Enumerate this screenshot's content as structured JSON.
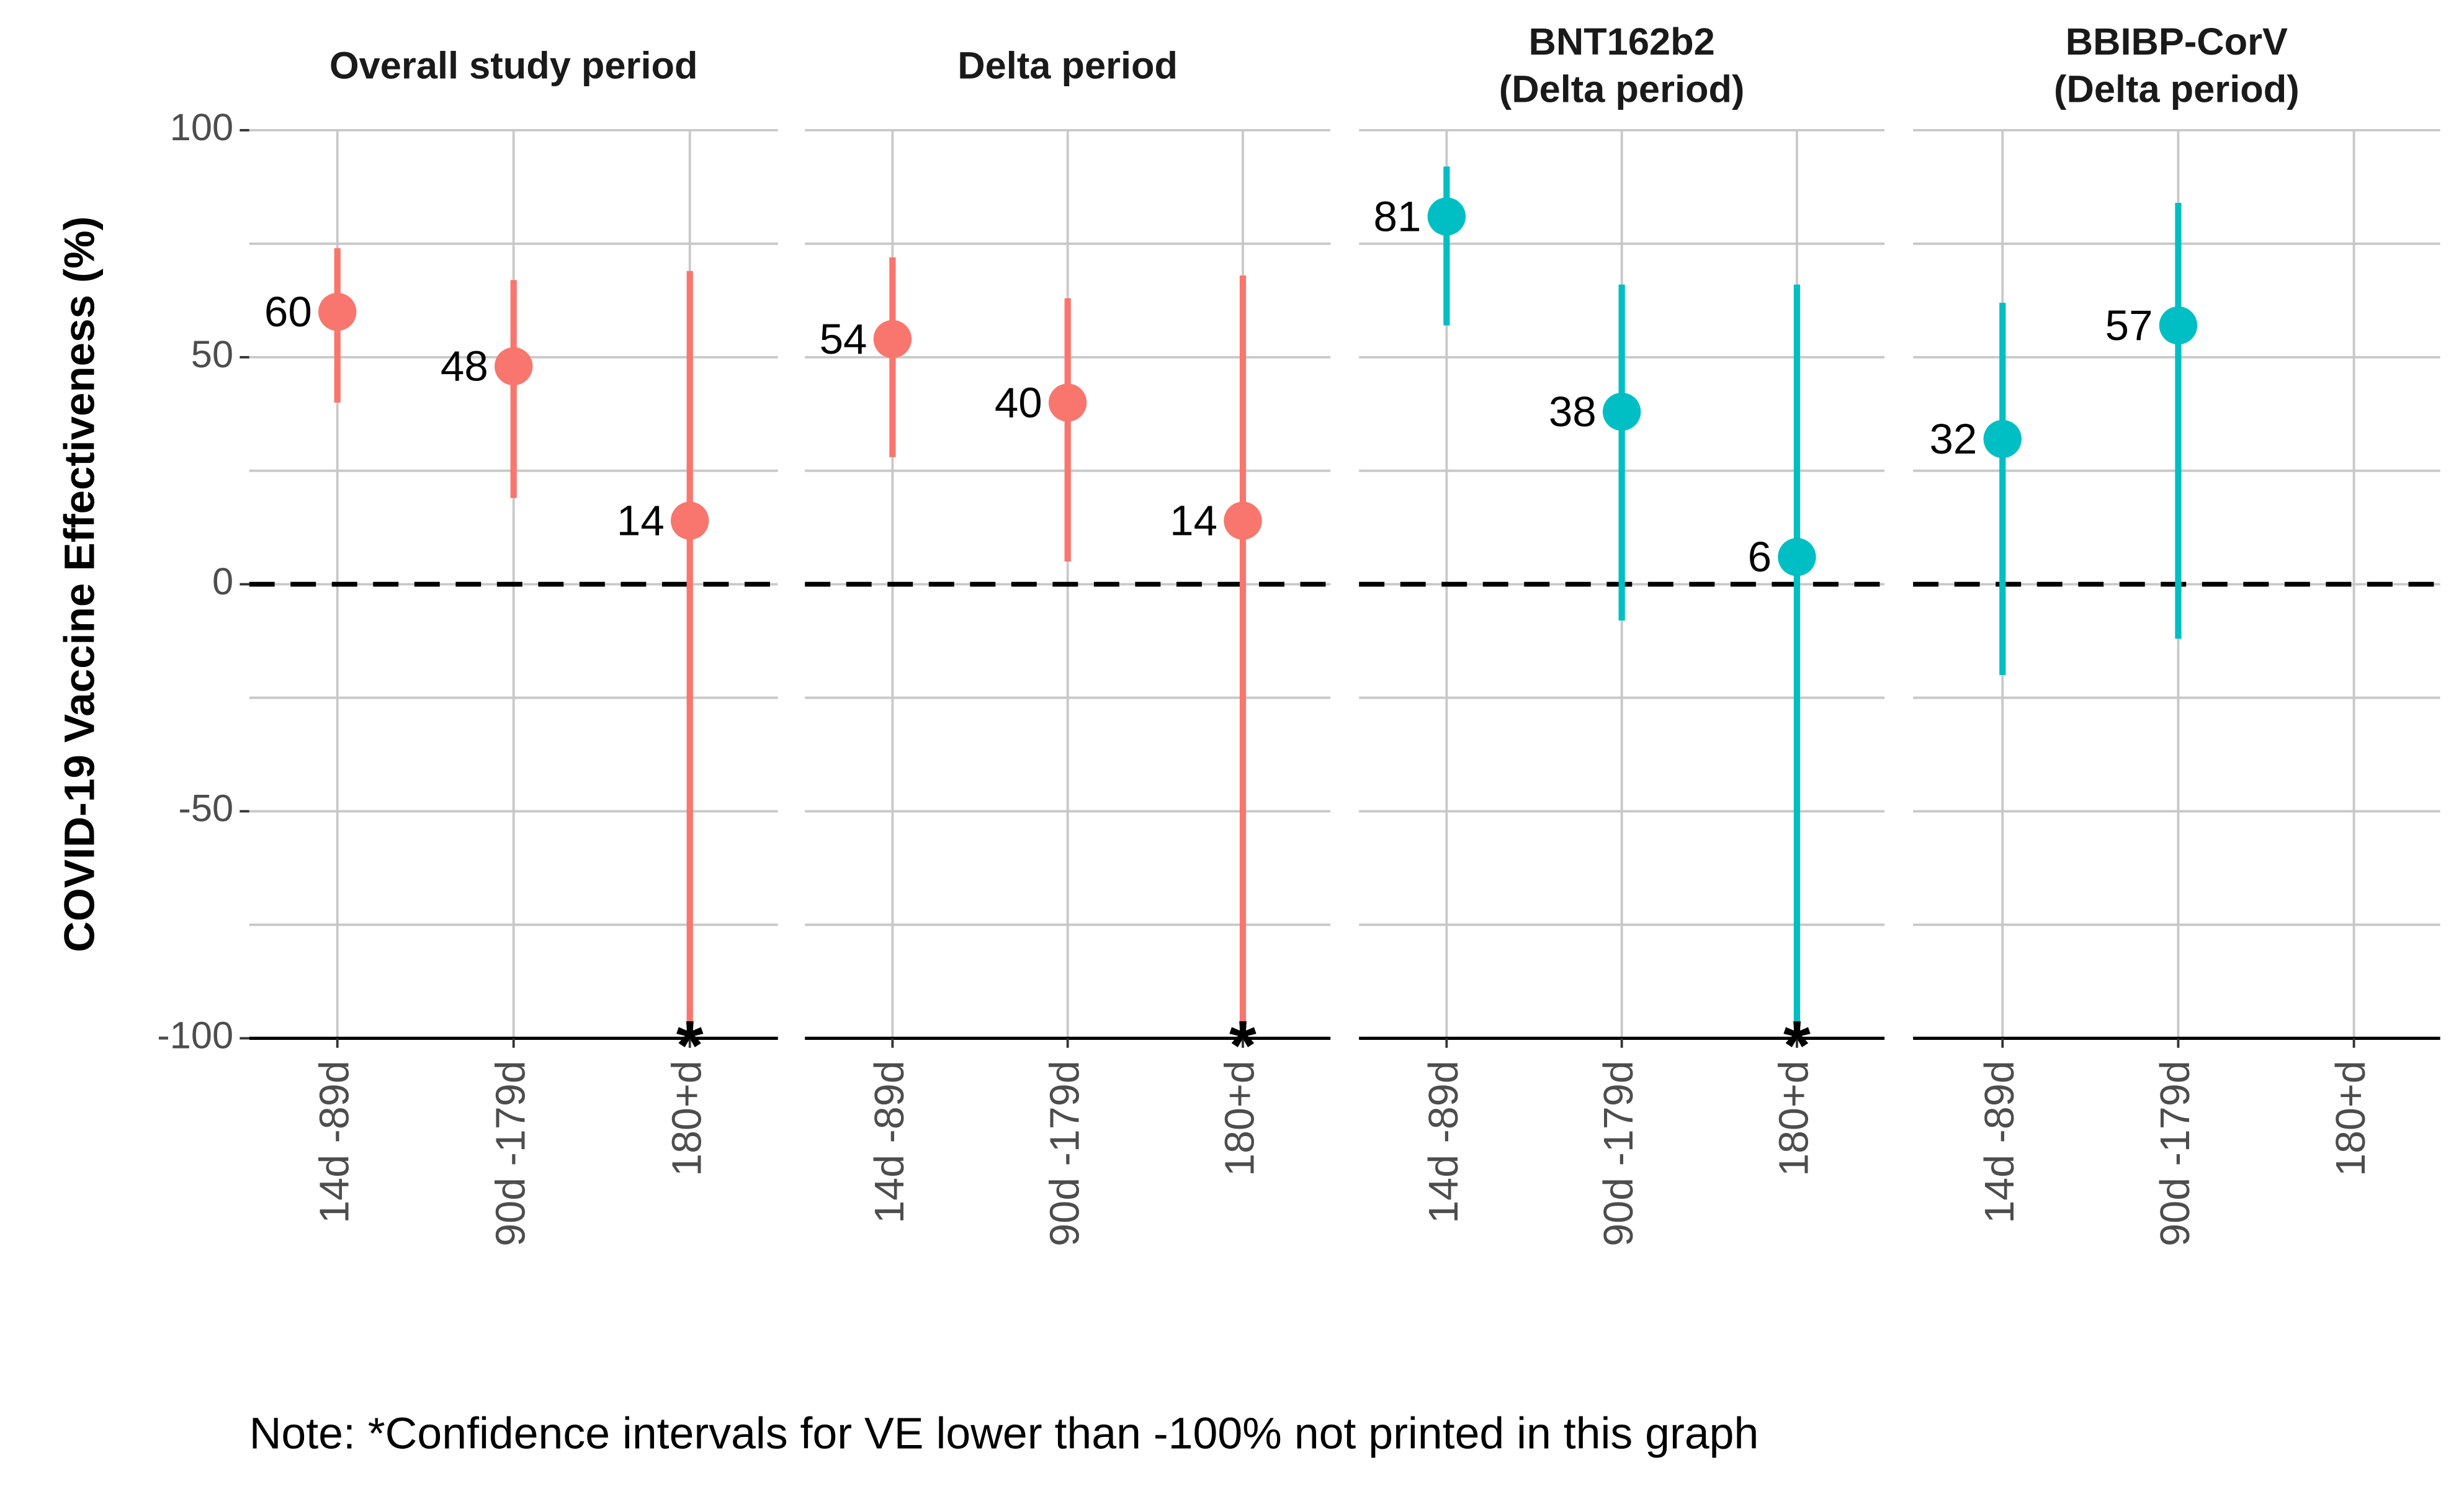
{
  "chart_data": [
    {
      "type": "pointrange",
      "title": [
        "Overall study period"
      ],
      "categories": [
        "14d -89d",
        "90d -179d",
        "180+d"
      ],
      "color": "#f8766d",
      "values": [
        60,
        48,
        14
      ],
      "lower": [
        40,
        19,
        null
      ],
      "upper": [
        74,
        67,
        69
      ],
      "annotations": [
        {
          "text": "*",
          "x": "180+d",
          "y": -100
        }
      ],
      "ylim": [
        -100,
        100
      ],
      "yticks": [
        -100,
        -50,
        0,
        50,
        100
      ],
      "yminorticks": [
        -75,
        -25,
        25,
        75
      ],
      "reference_line": 0,
      "grid": true,
      "ylabel": "COVID-19 Vaccine Effectiveness (%)"
    },
    {
      "type": "pointrange",
      "title": [
        "Delta period"
      ],
      "categories": [
        "14d -89d",
        "90d -179d",
        "180+d"
      ],
      "color": "#f8766d",
      "values": [
        54,
        40,
        14
      ],
      "lower": [
        28,
        5,
        null
      ],
      "upper": [
        72,
        63,
        68
      ],
      "annotations": [
        {
          "text": "*",
          "x": "180+d",
          "y": -100
        }
      ],
      "ylim": [
        -100,
        100
      ],
      "yticks": [
        -100,
        -50,
        0,
        50,
        100
      ],
      "yminorticks": [
        -75,
        -25,
        25,
        75
      ],
      "reference_line": 0,
      "grid": true
    },
    {
      "type": "pointrange",
      "title": [
        "BNT162b2",
        "(Delta period)"
      ],
      "categories": [
        "14d -89d",
        "90d -179d",
        "180+d"
      ],
      "color": "#00bfc4",
      "values": [
        81,
        38,
        6
      ],
      "lower": [
        57,
        -8,
        null
      ],
      "upper": [
        92,
        66,
        66
      ],
      "annotations": [
        {
          "text": "*",
          "x": "180+d",
          "y": -100
        }
      ],
      "ylim": [
        -100,
        100
      ],
      "yticks": [
        -100,
        -50,
        0,
        50,
        100
      ],
      "yminorticks": [
        -75,
        -25,
        25,
        75
      ],
      "reference_line": 0,
      "grid": true
    },
    {
      "type": "pointrange",
      "title": [
        "BBIBP-CorV",
        "(Delta period)"
      ],
      "categories": [
        "14d -89d",
        "90d -179d",
        "180+d"
      ],
      "color": "#00bfc4",
      "values": [
        32,
        57,
        null
      ],
      "lower": [
        -20,
        -12,
        null
      ],
      "upper": [
        62,
        84,
        null
      ],
      "annotations": [],
      "ylim": [
        -100,
        100
      ],
      "yticks": [
        -100,
        -50,
        0,
        50,
        100
      ],
      "yminorticks": [
        -75,
        -25,
        25,
        75
      ],
      "reference_line": 0,
      "grid": true
    }
  ],
  "note": "Note: *Confidence intervals for VE lower than -100% not printed in this graph"
}
